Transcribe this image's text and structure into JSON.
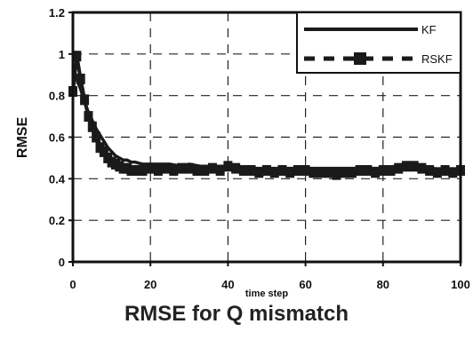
{
  "caption": "RMSE for Q mismatch",
  "chart_data": {
    "type": "line",
    "title": "",
    "xlabel": "time step",
    "ylabel": "RMSE",
    "xlim": [
      0,
      100
    ],
    "ylim": [
      0,
      1.2
    ],
    "xticks": [
      0,
      20,
      40,
      60,
      80,
      100
    ],
    "yticks": [
      0,
      0.2,
      0.4,
      0.6,
      0.8,
      1,
      1.2
    ],
    "ytick_labels": [
      "0",
      "0.2",
      "0.4",
      "0.6",
      "0.8",
      "1",
      "1.2"
    ],
    "grid": true,
    "legend_position": "top-right",
    "series": [
      {
        "name": "KF",
        "style": "solid",
        "color": "#1a1a1a",
        "x": [
          0,
          1,
          2,
          3,
          4,
          5,
          6,
          7,
          8,
          9,
          10,
          11,
          12,
          13,
          14,
          15,
          16,
          18,
          20,
          22,
          25,
          28,
          30,
          33,
          35,
          38,
          40,
          43,
          45,
          48,
          50,
          53,
          55,
          58,
          60,
          63,
          65,
          67,
          70,
          73,
          75,
          78,
          80,
          83,
          85,
          88,
          90,
          93,
          95,
          98,
          100
        ],
        "y": [
          0.9,
          0.88,
          0.83,
          0.77,
          0.72,
          0.68,
          0.64,
          0.61,
          0.58,
          0.55,
          0.53,
          0.51,
          0.5,
          0.49,
          0.49,
          0.48,
          0.48,
          0.47,
          0.47,
          0.47,
          0.47,
          0.46,
          0.47,
          0.46,
          0.46,
          0.46,
          0.46,
          0.45,
          0.45,
          0.45,
          0.45,
          0.45,
          0.45,
          0.45,
          0.45,
          0.45,
          0.45,
          0.45,
          0.45,
          0.45,
          0.45,
          0.45,
          0.45,
          0.46,
          0.45,
          0.45,
          0.45,
          0.45,
          0.44,
          0.44,
          0.44
        ]
      },
      {
        "name": "RSKF",
        "style": "dashed-square",
        "color": "#1a1a1a",
        "x": [
          0,
          1,
          2,
          3,
          4,
          5,
          6,
          7,
          8,
          9,
          10,
          11,
          12,
          13,
          14,
          15,
          16,
          17,
          18,
          20,
          22,
          24,
          26,
          28,
          30,
          32,
          34,
          36,
          38,
          40,
          42,
          44,
          46,
          48,
          50,
          52,
          54,
          56,
          58,
          60,
          62,
          64,
          66,
          68,
          70,
          72,
          74,
          76,
          78,
          80,
          82,
          84,
          86,
          88,
          90,
          92,
          94,
          96,
          98,
          100
        ],
        "y": [
          0.82,
          0.99,
          0.88,
          0.78,
          0.7,
          0.65,
          0.6,
          0.55,
          0.53,
          0.5,
          0.48,
          0.47,
          0.46,
          0.45,
          0.45,
          0.44,
          0.44,
          0.44,
          0.44,
          0.45,
          0.44,
          0.45,
          0.44,
          0.45,
          0.45,
          0.44,
          0.44,
          0.45,
          0.44,
          0.46,
          0.45,
          0.44,
          0.44,
          0.43,
          0.44,
          0.43,
          0.44,
          0.43,
          0.44,
          0.44,
          0.43,
          0.43,
          0.43,
          0.42,
          0.43,
          0.43,
          0.44,
          0.44,
          0.43,
          0.44,
          0.44,
          0.45,
          0.46,
          0.46,
          0.45,
          0.44,
          0.43,
          0.44,
          0.43,
          0.44
        ]
      }
    ]
  }
}
